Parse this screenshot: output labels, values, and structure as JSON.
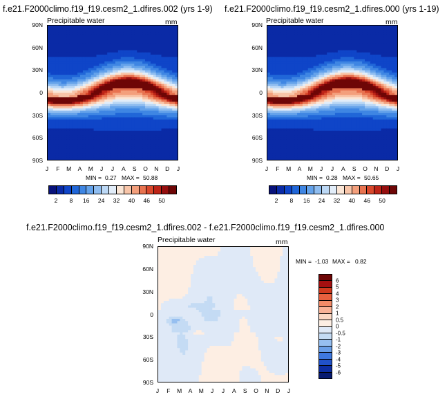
{
  "chart_data": [
    {
      "type": "heatmap",
      "title": "f.e21.F2000climo.f19_f19.cesm2_1.dfires.002 (yrs 1-9)",
      "variable": "Precipitable water",
      "units": "mm",
      "x_ticks": [
        "J",
        "F",
        "M",
        "A",
        "M",
        "J",
        "J",
        "A",
        "S",
        "O",
        "N",
        "D",
        "J"
      ],
      "y_ticks": [
        "90N",
        "60N",
        "30N",
        "0",
        "30S",
        "60S",
        "90S"
      ],
      "min_label": "MIN =",
      "min_value": "0.27",
      "max_label": "MAX =",
      "max_value": "50.88",
      "colorbar_labels": [
        "2",
        "8",
        "16",
        "24",
        "32",
        "40",
        "46",
        "50"
      ],
      "levels": [
        2,
        4,
        6,
        8,
        12,
        16,
        20,
        24,
        28,
        32,
        36,
        40,
        44,
        46,
        48,
        50
      ]
    },
    {
      "type": "heatmap",
      "title": "f.e21.F2000climo.f19_f19.cesm2_1.dfires.000 (yrs 1-19)",
      "variable": "Precipitable water",
      "units": "mm",
      "x_ticks": [
        "J",
        "F",
        "M",
        "A",
        "M",
        "J",
        "J",
        "A",
        "S",
        "O",
        "N",
        "D",
        "J"
      ],
      "y_ticks": [
        "90N",
        "60N",
        "30N",
        "0",
        "30S",
        "60S",
        "90S"
      ],
      "min_label": "MIN =",
      "min_value": "0.28",
      "max_label": "MAX =",
      "max_value": "50.65",
      "colorbar_labels": [
        "2",
        "8",
        "16",
        "24",
        "32",
        "40",
        "46",
        "50"
      ],
      "levels": [
        2,
        4,
        6,
        8,
        12,
        16,
        20,
        24,
        28,
        32,
        36,
        40,
        44,
        46,
        48,
        50
      ]
    },
    {
      "type": "heatmap",
      "title": "f.e21.F2000climo.f19_f19.cesm2_1.dfires.002 - f.e21.F2000climo.f19_f19.cesm2_1.dfires.000",
      "variable": "Precipitable water",
      "units": "mm",
      "x_ticks": [
        "J",
        "F",
        "M",
        "A",
        "M",
        "J",
        "J",
        "A",
        "S",
        "O",
        "N",
        "D",
        "J"
      ],
      "y_ticks": [
        "90N",
        "60N",
        "30N",
        "0",
        "30S",
        "60S",
        "90S"
      ],
      "min_label": "MIN =",
      "min_value": "-1.03",
      "max_label": "MAX =",
      "max_value": "0.82",
      "colorbar_labels": [
        "6",
        "5",
        "4",
        "3",
        "2",
        "1",
        "0.5",
        "0",
        "-0.5",
        "-1",
        "-2",
        "-3",
        "-4",
        "-5",
        "-6"
      ]
    }
  ],
  "colors": {
    "abs_palette": [
      "#08127a",
      "#0a2aa6",
      "#0f45c8",
      "#2066d8",
      "#3f86e3",
      "#64a2ea",
      "#8fbdf0",
      "#bcd8f5",
      "#e2edf9",
      "#fbe6d6",
      "#f8c5a9",
      "#f39f7c",
      "#e87350",
      "#d9482c",
      "#bd2417",
      "#950e0e",
      "#6e0606"
    ],
    "diff_palette": [
      "#6e0606",
      "#a41010",
      "#d03a1e",
      "#e8603e",
      "#f38b68",
      "#f8b297",
      "#fbd8c4",
      "#fdeee3",
      "#dfe9f7",
      "#c4dbf4",
      "#96bff0",
      "#6a9fe8",
      "#3f79df",
      "#2152c9",
      "#0d2ea2",
      "#071a70"
    ]
  }
}
